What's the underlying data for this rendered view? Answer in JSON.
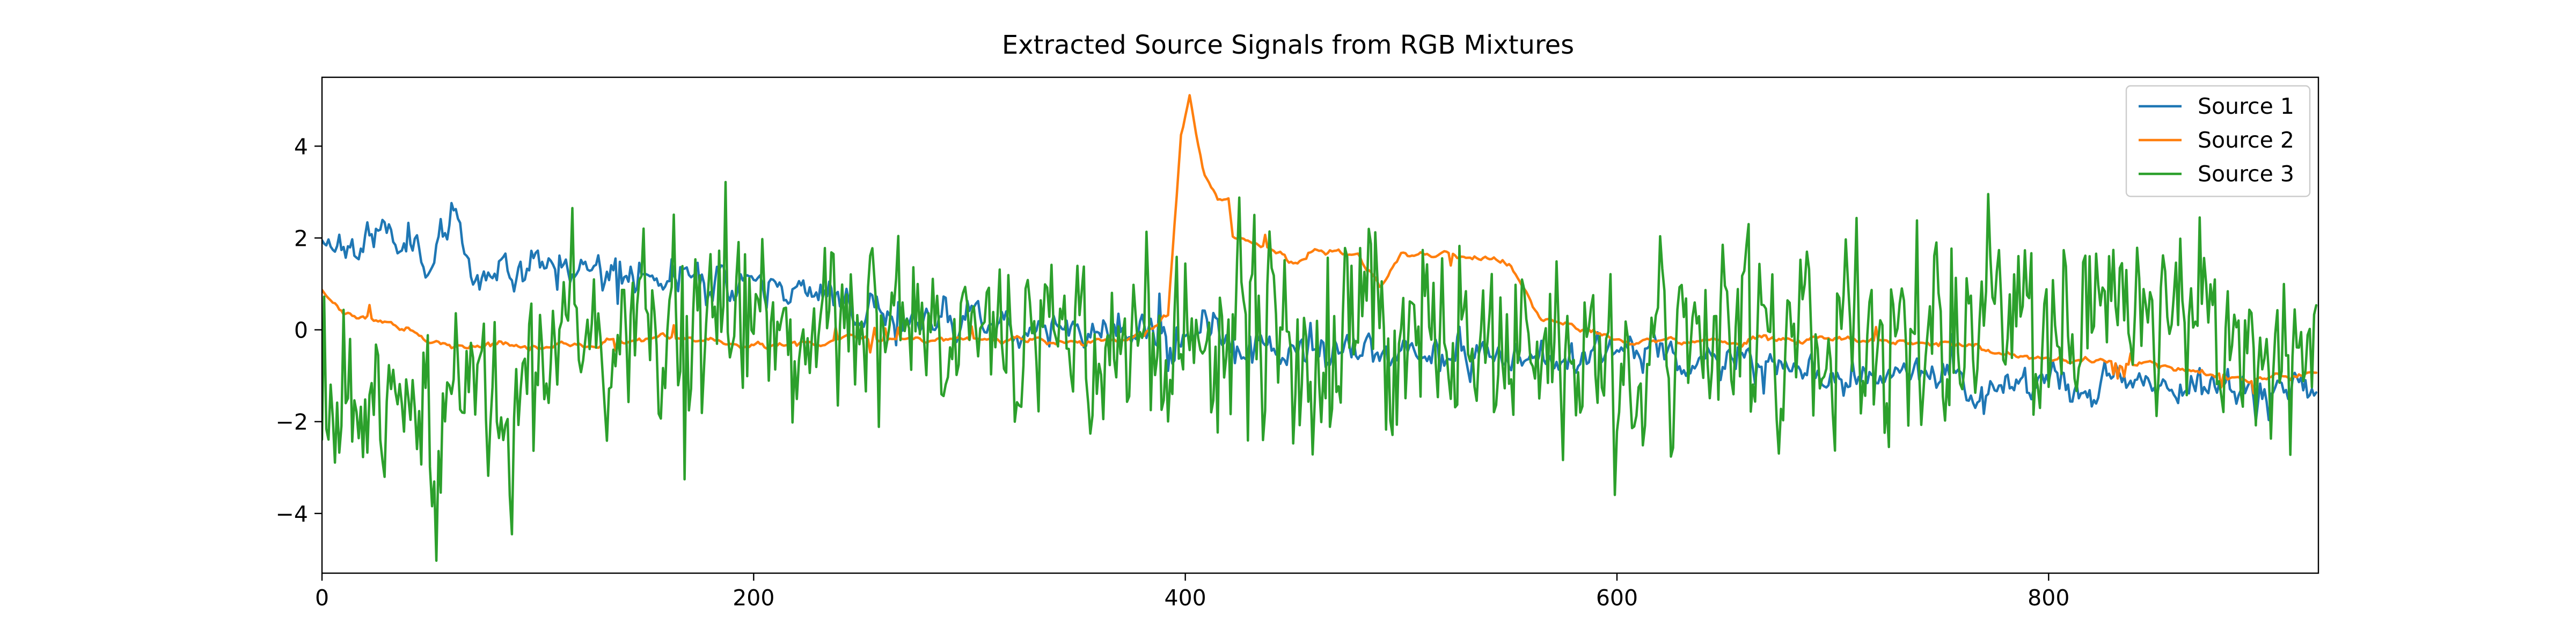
{
  "chart_data": {
    "type": "line",
    "title": "Extracted Source Signals from RGB Mixtures",
    "xlabel": "",
    "ylabel": "",
    "xlim": [
      0,
      925
    ],
    "ylim": [
      -5.3,
      5.5
    ],
    "xticks": [
      0,
      200,
      400,
      600,
      800
    ],
    "yticks": [
      -4,
      -2,
      0,
      2,
      4
    ],
    "xtick_labels": [
      "0",
      "200",
      "400",
      "600",
      "800"
    ],
    "ytick_labels": [
      "−4",
      "−2",
      "0",
      "2",
      "4"
    ],
    "legend_position": "top-right",
    "grid": false,
    "n_points": 925,
    "series": [
      {
        "name": "Source 1",
        "color": "#1f77b4",
        "trend": [
          [
            0,
            2.0
          ],
          [
            20,
            1.9
          ],
          [
            40,
            2.2
          ],
          [
            50,
            1.5
          ],
          [
            60,
            2.3
          ],
          [
            70,
            1.3
          ],
          [
            100,
            1.5
          ],
          [
            150,
            1.2
          ],
          [
            200,
            1.0
          ],
          [
            250,
            0.5
          ],
          [
            300,
            0.2
          ],
          [
            350,
            0.0
          ],
          [
            400,
            -0.2
          ],
          [
            450,
            -0.3
          ],
          [
            500,
            -0.5
          ],
          [
            550,
            -0.6
          ],
          [
            600,
            -0.4
          ],
          [
            650,
            -0.7
          ],
          [
            700,
            -1.0
          ],
          [
            750,
            -1.0
          ],
          [
            770,
            -1.4
          ],
          [
            800,
            -1.2
          ],
          [
            850,
            -1.2
          ],
          [
            900,
            -1.2
          ],
          [
            925,
            -1.2
          ]
        ],
        "noise": 0.28,
        "smoothing": 0.6,
        "seed": 11
      },
      {
        "name": "Source 2",
        "color": "#ff7f0e",
        "trend": [
          [
            0,
            0.9
          ],
          [
            10,
            0.3
          ],
          [
            40,
            0.0
          ],
          [
            60,
            -0.3
          ],
          [
            100,
            -0.4
          ],
          [
            150,
            -0.2
          ],
          [
            200,
            -0.3
          ],
          [
            300,
            -0.2
          ],
          [
            350,
            -0.3
          ],
          [
            380,
            -0.1
          ],
          [
            392,
            0.3
          ],
          [
            398,
            4.2
          ],
          [
            402,
            5.1
          ],
          [
            408,
            3.6
          ],
          [
            415,
            2.8
          ],
          [
            420,
            2.7
          ],
          [
            422,
            1.9
          ],
          [
            440,
            1.8
          ],
          [
            450,
            1.5
          ],
          [
            460,
            1.7
          ],
          [
            480,
            1.6
          ],
          [
            490,
            1.0
          ],
          [
            500,
            1.7
          ],
          [
            550,
            1.5
          ],
          [
            565,
            0.2
          ],
          [
            600,
            -0.2
          ],
          [
            700,
            -0.3
          ],
          [
            750,
            -0.3
          ],
          [
            800,
            -0.6
          ],
          [
            850,
            -0.8
          ],
          [
            900,
            -1.1
          ],
          [
            925,
            -0.9
          ]
        ],
        "noise": 0.12,
        "smoothing": 0.85,
        "seed": 23
      },
      {
        "name": "Source 3",
        "color": "#2ca02c",
        "trend": [
          [
            0,
            -1.3
          ],
          [
            20,
            -2.0
          ],
          [
            40,
            -2.5
          ],
          [
            50,
            -3.0
          ],
          [
            60,
            -1.2
          ],
          [
            80,
            -1.5
          ],
          [
            100,
            -0.6
          ],
          [
            150,
            0.3
          ],
          [
            200,
            0.0
          ],
          [
            300,
            -0.2
          ],
          [
            350,
            0.1
          ],
          [
            400,
            0.0
          ],
          [
            420,
            0.1
          ],
          [
            450,
            -0.5
          ],
          [
            480,
            0.2
          ],
          [
            500,
            0.0
          ],
          [
            550,
            -0.3
          ],
          [
            600,
            -0.5
          ],
          [
            650,
            -0.2
          ],
          [
            700,
            0.3
          ],
          [
            750,
            -0.1
          ],
          [
            800,
            0.0
          ],
          [
            850,
            0.2
          ],
          [
            900,
            0.0
          ],
          [
            925,
            -0.2
          ]
        ],
        "noise": 0.95,
        "smoothing": 0.35,
        "seed": 37
      }
    ]
  }
}
